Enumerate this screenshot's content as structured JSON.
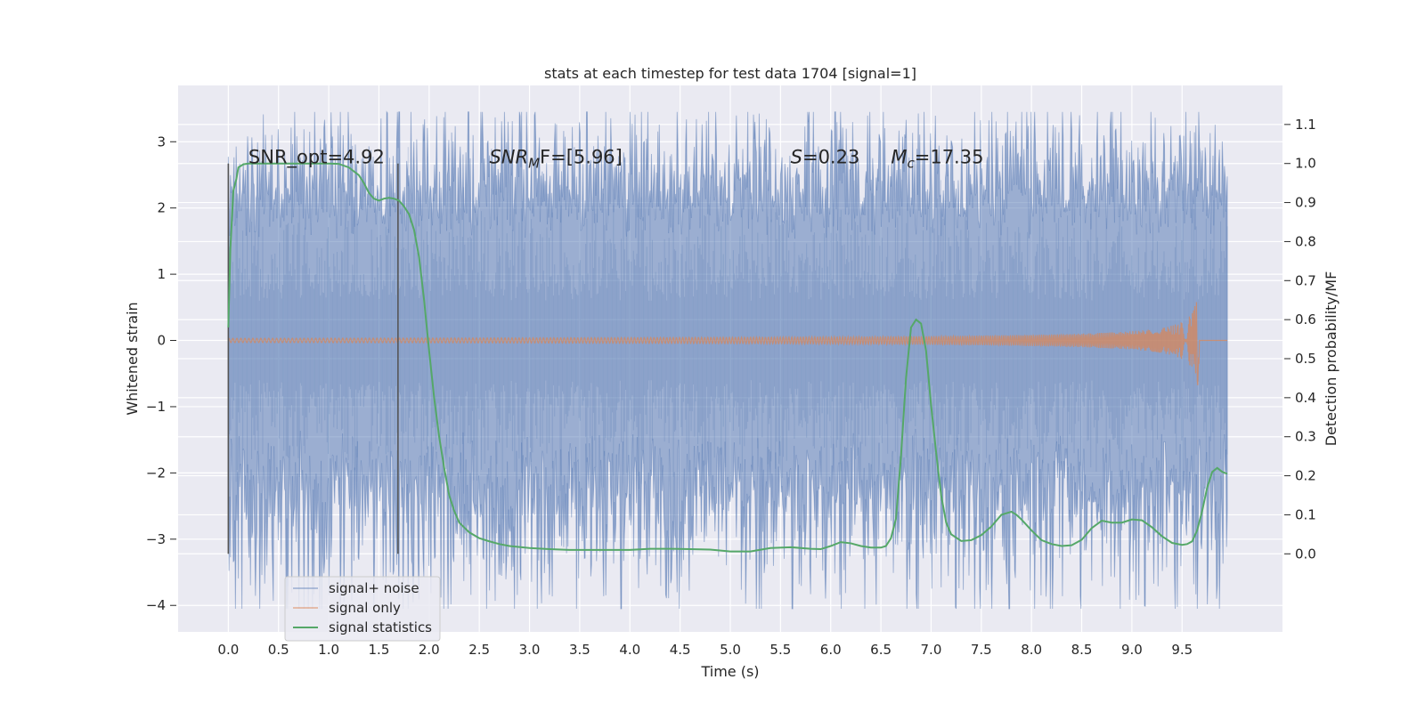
{
  "chart_data": {
    "type": "line",
    "title": "stats at each timestep for test data 1704 [signal=1]",
    "xlabel": "Time (s)",
    "ylabel": "Whitened strain",
    "y2label": "Detection probability/MF",
    "xlim": [
      -0.5,
      10.5
    ],
    "ylim": [
      -4.4,
      3.85
    ],
    "y2lim": [
      -0.2,
      1.2
    ],
    "x_ticks": [
      "0.0",
      "0.5",
      "1.0",
      "1.5",
      "2.0",
      "2.5",
      "3.0",
      "3.5",
      "4.0",
      "4.5",
      "5.0",
      "5.5",
      "6.0",
      "6.5",
      "7.0",
      "7.5",
      "8.0",
      "8.5",
      "9.0",
      "9.5"
    ],
    "y_ticks": [
      "3",
      "2",
      "1",
      "0",
      "−1",
      "−2",
      "−3",
      "−4"
    ],
    "y2_ticks": [
      "1.1",
      "1.0",
      "0.9",
      "0.8",
      "0.7",
      "0.6",
      "0.5",
      "0.4",
      "0.3",
      "0.2",
      "0.1",
      "0.0"
    ],
    "grid": true,
    "legend_position": "lower-left",
    "colors": {
      "noise": "#4c72b0",
      "signal": "#dd8452",
      "stats": "#55a868",
      "background": "#eaeaf2",
      "vline": "#555555"
    },
    "noise_extent": {
      "x_start": 0.0,
      "x_end": 9.95,
      "approx_upper_range": [
        1.5,
        3.45
      ],
      "approx_lower_range": [
        -1.3,
        -4.05
      ]
    },
    "signal_chirp": {
      "x_start": 0.0,
      "merger_x": 9.67,
      "end_x": 9.95,
      "peak_amplitude": 0.98
    },
    "vertical_lines": [
      {
        "x": 0.0,
        "y2_range": [
          0.0,
          1.0
        ]
      },
      {
        "x": 1.69,
        "y2_range": [
          0.0,
          1.0
        ]
      }
    ],
    "annotations": [
      {
        "text_plain": "SNR_opt=4.92",
        "x": 0.2,
        "y2": 1.0
      },
      {
        "text_base": "SNR",
        "text_sub": "M",
        "text_after": "F=[5.96]",
        "x": 2.6,
        "y2": 1.0
      },
      {
        "text_base": "S",
        "text_after": "=0.23",
        "x": 5.6,
        "y2": 1.0
      },
      {
        "text_base": "M",
        "text_sub": "c",
        "text_after": "=17.35",
        "x": 6.6,
        "y2": 1.0
      }
    ],
    "series": [
      {
        "name": "signal+ noise",
        "kind": "noise",
        "axis": "left"
      },
      {
        "name": "signal only",
        "kind": "signal",
        "axis": "left"
      },
      {
        "name": "signal statistics",
        "kind": "line",
        "axis": "right",
        "x": [
          0.0,
          0.02,
          0.05,
          0.08,
          0.1,
          0.15,
          0.2,
          0.3,
          0.4,
          0.5,
          0.6,
          0.7,
          0.8,
          0.9,
          1.0,
          1.1,
          1.2,
          1.3,
          1.35,
          1.4,
          1.45,
          1.5,
          1.55,
          1.6,
          1.65,
          1.7,
          1.75,
          1.8,
          1.85,
          1.9,
          1.95,
          2.0,
          2.05,
          2.1,
          2.15,
          2.2,
          2.25,
          2.3,
          2.4,
          2.5,
          2.6,
          2.7,
          2.8,
          3.0,
          3.2,
          3.4,
          3.6,
          3.8,
          4.0,
          4.2,
          4.4,
          4.6,
          4.8,
          5.0,
          5.2,
          5.4,
          5.6,
          5.8,
          5.9,
          6.0,
          6.1,
          6.2,
          6.3,
          6.4,
          6.5,
          6.55,
          6.6,
          6.65,
          6.7,
          6.75,
          6.8,
          6.85,
          6.9,
          6.95,
          7.0,
          7.05,
          7.1,
          7.15,
          7.2,
          7.3,
          7.4,
          7.5,
          7.6,
          7.7,
          7.8,
          7.85,
          7.9,
          8.0,
          8.1,
          8.2,
          8.3,
          8.4,
          8.5,
          8.6,
          8.7,
          8.8,
          8.9,
          9.0,
          9.1,
          9.2,
          9.3,
          9.4,
          9.5,
          9.55,
          9.6,
          9.65,
          9.7,
          9.75,
          9.8,
          9.85,
          9.9,
          9.95
        ],
        "y": [
          0.58,
          0.78,
          0.93,
          0.96,
          0.99,
          0.998,
          1.0,
          1.0,
          1.0,
          1.0,
          1.0,
          1.0,
          1.0,
          1.0,
          1.0,
          0.999,
          0.99,
          0.97,
          0.95,
          0.925,
          0.91,
          0.905,
          0.91,
          0.912,
          0.91,
          0.905,
          0.89,
          0.87,
          0.83,
          0.76,
          0.65,
          0.52,
          0.4,
          0.3,
          0.22,
          0.15,
          0.11,
          0.08,
          0.055,
          0.04,
          0.032,
          0.025,
          0.02,
          0.015,
          0.012,
          0.01,
          0.01,
          0.01,
          0.01,
          0.013,
          0.013,
          0.012,
          0.011,
          0.006,
          0.006,
          0.015,
          0.017,
          0.013,
          0.012,
          0.02,
          0.03,
          0.027,
          0.02,
          0.016,
          0.016,
          0.02,
          0.04,
          0.09,
          0.25,
          0.45,
          0.58,
          0.6,
          0.59,
          0.52,
          0.38,
          0.26,
          0.15,
          0.08,
          0.05,
          0.033,
          0.035,
          0.048,
          0.07,
          0.1,
          0.108,
          0.1,
          0.088,
          0.06,
          0.035,
          0.025,
          0.02,
          0.022,
          0.036,
          0.066,
          0.085,
          0.08,
          0.08,
          0.088,
          0.086,
          0.068,
          0.045,
          0.028,
          0.023,
          0.025,
          0.032,
          0.06,
          0.11,
          0.17,
          0.21,
          0.22,
          0.21,
          0.205
        ]
      }
    ]
  }
}
